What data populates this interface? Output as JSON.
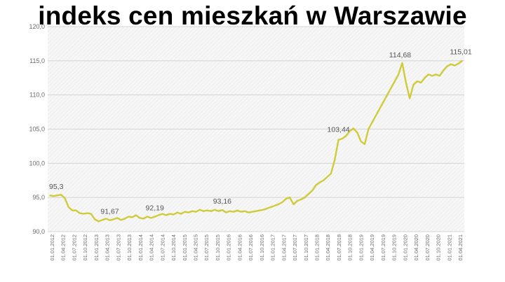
{
  "chart_data": {
    "type": "line",
    "title": "indeks cen mieszkań w Warszawie",
    "xlabel": "",
    "ylabel": "",
    "ylim": [
      90,
      120
    ],
    "y_ticks": [
      "90,0",
      "95,0",
      "100,0",
      "105,0",
      "110,0",
      "115,0",
      "120,0"
    ],
    "grid": true,
    "line_color": "#cfcb3a",
    "x_tick_labels": [
      "01.01.2012",
      "01.04.2012",
      "01.07.2012",
      "01.10.2012",
      "01.01.2013",
      "01.04.2013",
      "01.07.2013",
      "01.10.2013",
      "01.01.2014",
      "01.04.2014",
      "01.07.2014",
      "01.10.2014",
      "01.01.2015",
      "01.04.2015",
      "01.07.2015",
      "01.10.2015",
      "01.01.2016",
      "01.04.2016",
      "01.07.2016",
      "01.10.2016",
      "01.01.2017",
      "01.04.2017",
      "01.07.2017",
      "01.10.2017",
      "01.01.2018",
      "01.04.2018",
      "01.07.2018",
      "01.10.2018",
      "01.01.2019",
      "01.04.2019",
      "01.07.2019",
      "01.10.2019",
      "01.01.2020",
      "01.04.2020",
      "01.07.2020",
      "01.10.2020",
      "01.01.2021",
      "01.04.2021"
    ],
    "series": [
      {
        "values": [
          95.3,
          95.2,
          95.3,
          95.4,
          94.9,
          93.6,
          93.1,
          93.1,
          92.7,
          92.6,
          92.7,
          92.6,
          91.8,
          91.5,
          91.7,
          91.9,
          91.67,
          91.8,
          92.0,
          91.7,
          91.9,
          92.2,
          92.1,
          92.4,
          92.0,
          91.9,
          92.2,
          92.0,
          92.19,
          92.4,
          92.6,
          92.4,
          92.6,
          92.5,
          92.8,
          92.6,
          92.9,
          92.8,
          93.0,
          92.9,
          93.2,
          93.0,
          93.1,
          93.0,
          93.2,
          93.0,
          93.16,
          92.8,
          93.0,
          92.9,
          93.1,
          92.9,
          93.0,
          92.8,
          92.9,
          93.0,
          93.1,
          93.2,
          93.4,
          93.6,
          93.8,
          94.0,
          94.3,
          94.8,
          95.0,
          94.0,
          94.5,
          94.7,
          95.0,
          95.5,
          96.0,
          96.8,
          97.2,
          97.5,
          98.0,
          98.5,
          100.5,
          103.44,
          103.6,
          104.0,
          104.7,
          105.1,
          104.5,
          103.2,
          102.8,
          105.0,
          106.0,
          107.0,
          108.0,
          109.0,
          110.0,
          111.0,
          112.0,
          113.0,
          114.68,
          111.8,
          109.5,
          111.5,
          112.0,
          111.8,
          112.5,
          113.0,
          112.8,
          113.0,
          112.8,
          113.6,
          114.2,
          114.5,
          114.3,
          114.6,
          115.01
        ]
      }
    ],
    "annotations": [
      {
        "label": "95,3",
        "index": 0
      },
      {
        "label": "91,67",
        "index": 16
      },
      {
        "label": "92,19",
        "index": 28
      },
      {
        "label": "93,16",
        "index": 46
      },
      {
        "label": "103,44",
        "index": 77
      },
      {
        "label": "114,68",
        "index": 94
      },
      {
        "label": "115,01",
        "index": 110
      }
    ]
  }
}
